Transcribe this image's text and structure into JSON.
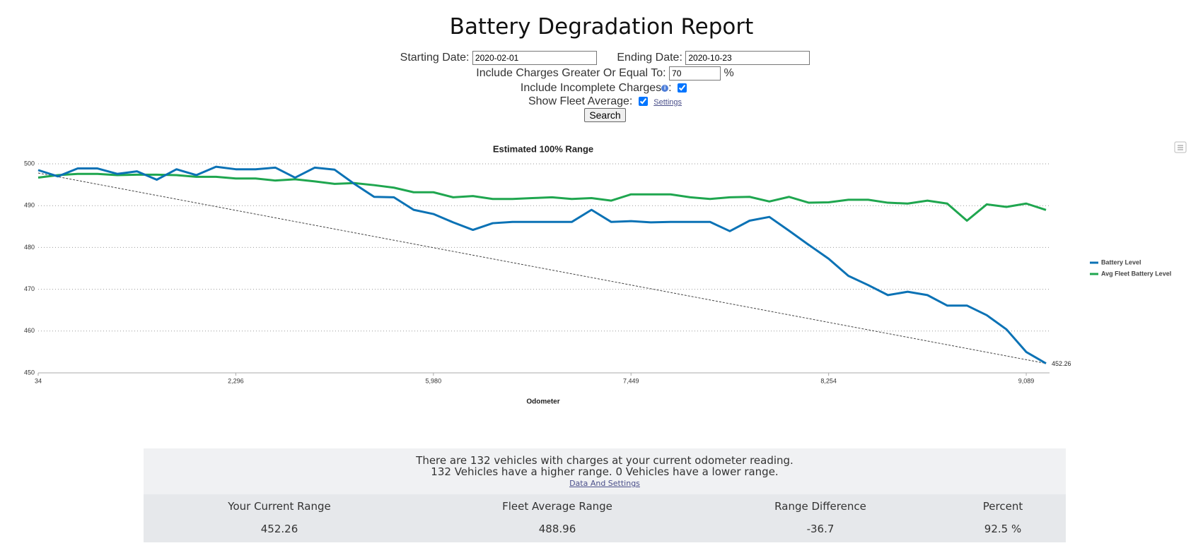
{
  "header": {
    "title": "Battery Degradation Report"
  },
  "form": {
    "starting_date_label": "Starting Date:",
    "starting_date": "2020-02-01",
    "ending_date_label": "Ending Date:",
    "ending_date": "2020-10-23",
    "min_charge_label": "Include Charges Greater Or Equal To:",
    "min_charge": "70",
    "min_charge_unit": "%",
    "incomplete_label": "Include Incomplete Charges",
    "incomplete_suffix": ":",
    "incomplete_checked": true,
    "fleet_label": "Show Fleet Average:",
    "fleet_checked": true,
    "settings_link": "Settings",
    "search_button": "Search"
  },
  "chart_data": {
    "type": "line",
    "title": "Estimated 100% Range",
    "x_label": "Odometer",
    "categories": [
      "34",
      null,
      null,
      null,
      null,
      null,
      null,
      null,
      null,
      null,
      "2,296",
      null,
      null,
      null,
      null,
      null,
      null,
      null,
      null,
      null,
      "5,980",
      null,
      null,
      null,
      null,
      null,
      null,
      null,
      null,
      null,
      "7,449",
      null,
      null,
      null,
      null,
      null,
      null,
      null,
      null,
      null,
      "8,254",
      null,
      null,
      null,
      null,
      null,
      null,
      null,
      null,
      null,
      "9,089",
      null
    ],
    "series": [
      {
        "name": "Battery Level",
        "color": "#0b72b5",
        "end_label": true,
        "values": [
          498.5,
          497,
          498.9,
          498.9,
          497.6,
          498.2,
          496.2,
          498.7,
          497.3,
          499.3,
          498.7,
          498.7,
          499.1,
          496.7,
          499.1,
          498.6,
          495.2,
          492.1,
          492,
          489,
          488,
          486,
          484.2,
          485.8,
          486.1,
          486.1,
          486.1,
          486.1,
          489,
          486.1,
          486.3,
          486,
          486.1,
          486.1,
          486.1,
          483.9,
          486.4,
          487.3,
          484,
          480.6,
          477.3,
          473.2,
          471,
          468.6,
          469.4,
          468.6,
          466.1,
          466.1,
          463.8,
          460.4,
          455,
          452.26
        ]
      },
      {
        "name": "Avg Fleet Battery Level",
        "color": "#1fa64f",
        "values": [
          496.7,
          497.3,
          497.6,
          497.6,
          497.3,
          497.4,
          497.4,
          497.3,
          496.9,
          496.9,
          496.5,
          496.5,
          496,
          496.3,
          495.8,
          495.2,
          495.4,
          494.9,
          494.3,
          493.2,
          493.2,
          492,
          492.3,
          491.6,
          491.6,
          491.8,
          492,
          491.6,
          491.8,
          491.2,
          492.7,
          492.7,
          492.7,
          492,
          491.6,
          492,
          492.1,
          491,
          492.1,
          490.7,
          490.8,
          491.4,
          491.4,
          490.7,
          490.5,
          491.2,
          490.5,
          486.4,
          490.3,
          489.7,
          490.5,
          488.96
        ]
      }
    ],
    "trendline": {
      "values": [
        497.8,
        452.26
      ],
      "color": "#444444"
    },
    "ylim": [
      450,
      500
    ],
    "yticks": [
      450,
      460,
      470,
      480,
      490,
      500
    ],
    "grid": true,
    "legend": "right"
  },
  "summary": {
    "message_lines": [
      "There are 132 vehicles with charges at your current odometer reading.",
      "132 Vehicles have a higher range. 0 Vehicles have a lower range."
    ],
    "link": "Data And Settings",
    "table": {
      "headers": [
        "Your Current Range",
        "Fleet Average Range",
        "Range Difference",
        "Percent"
      ],
      "rows": [
        [
          "452.26",
          "488.96",
          "-36.7",
          "92.5 %"
        ]
      ]
    }
  }
}
